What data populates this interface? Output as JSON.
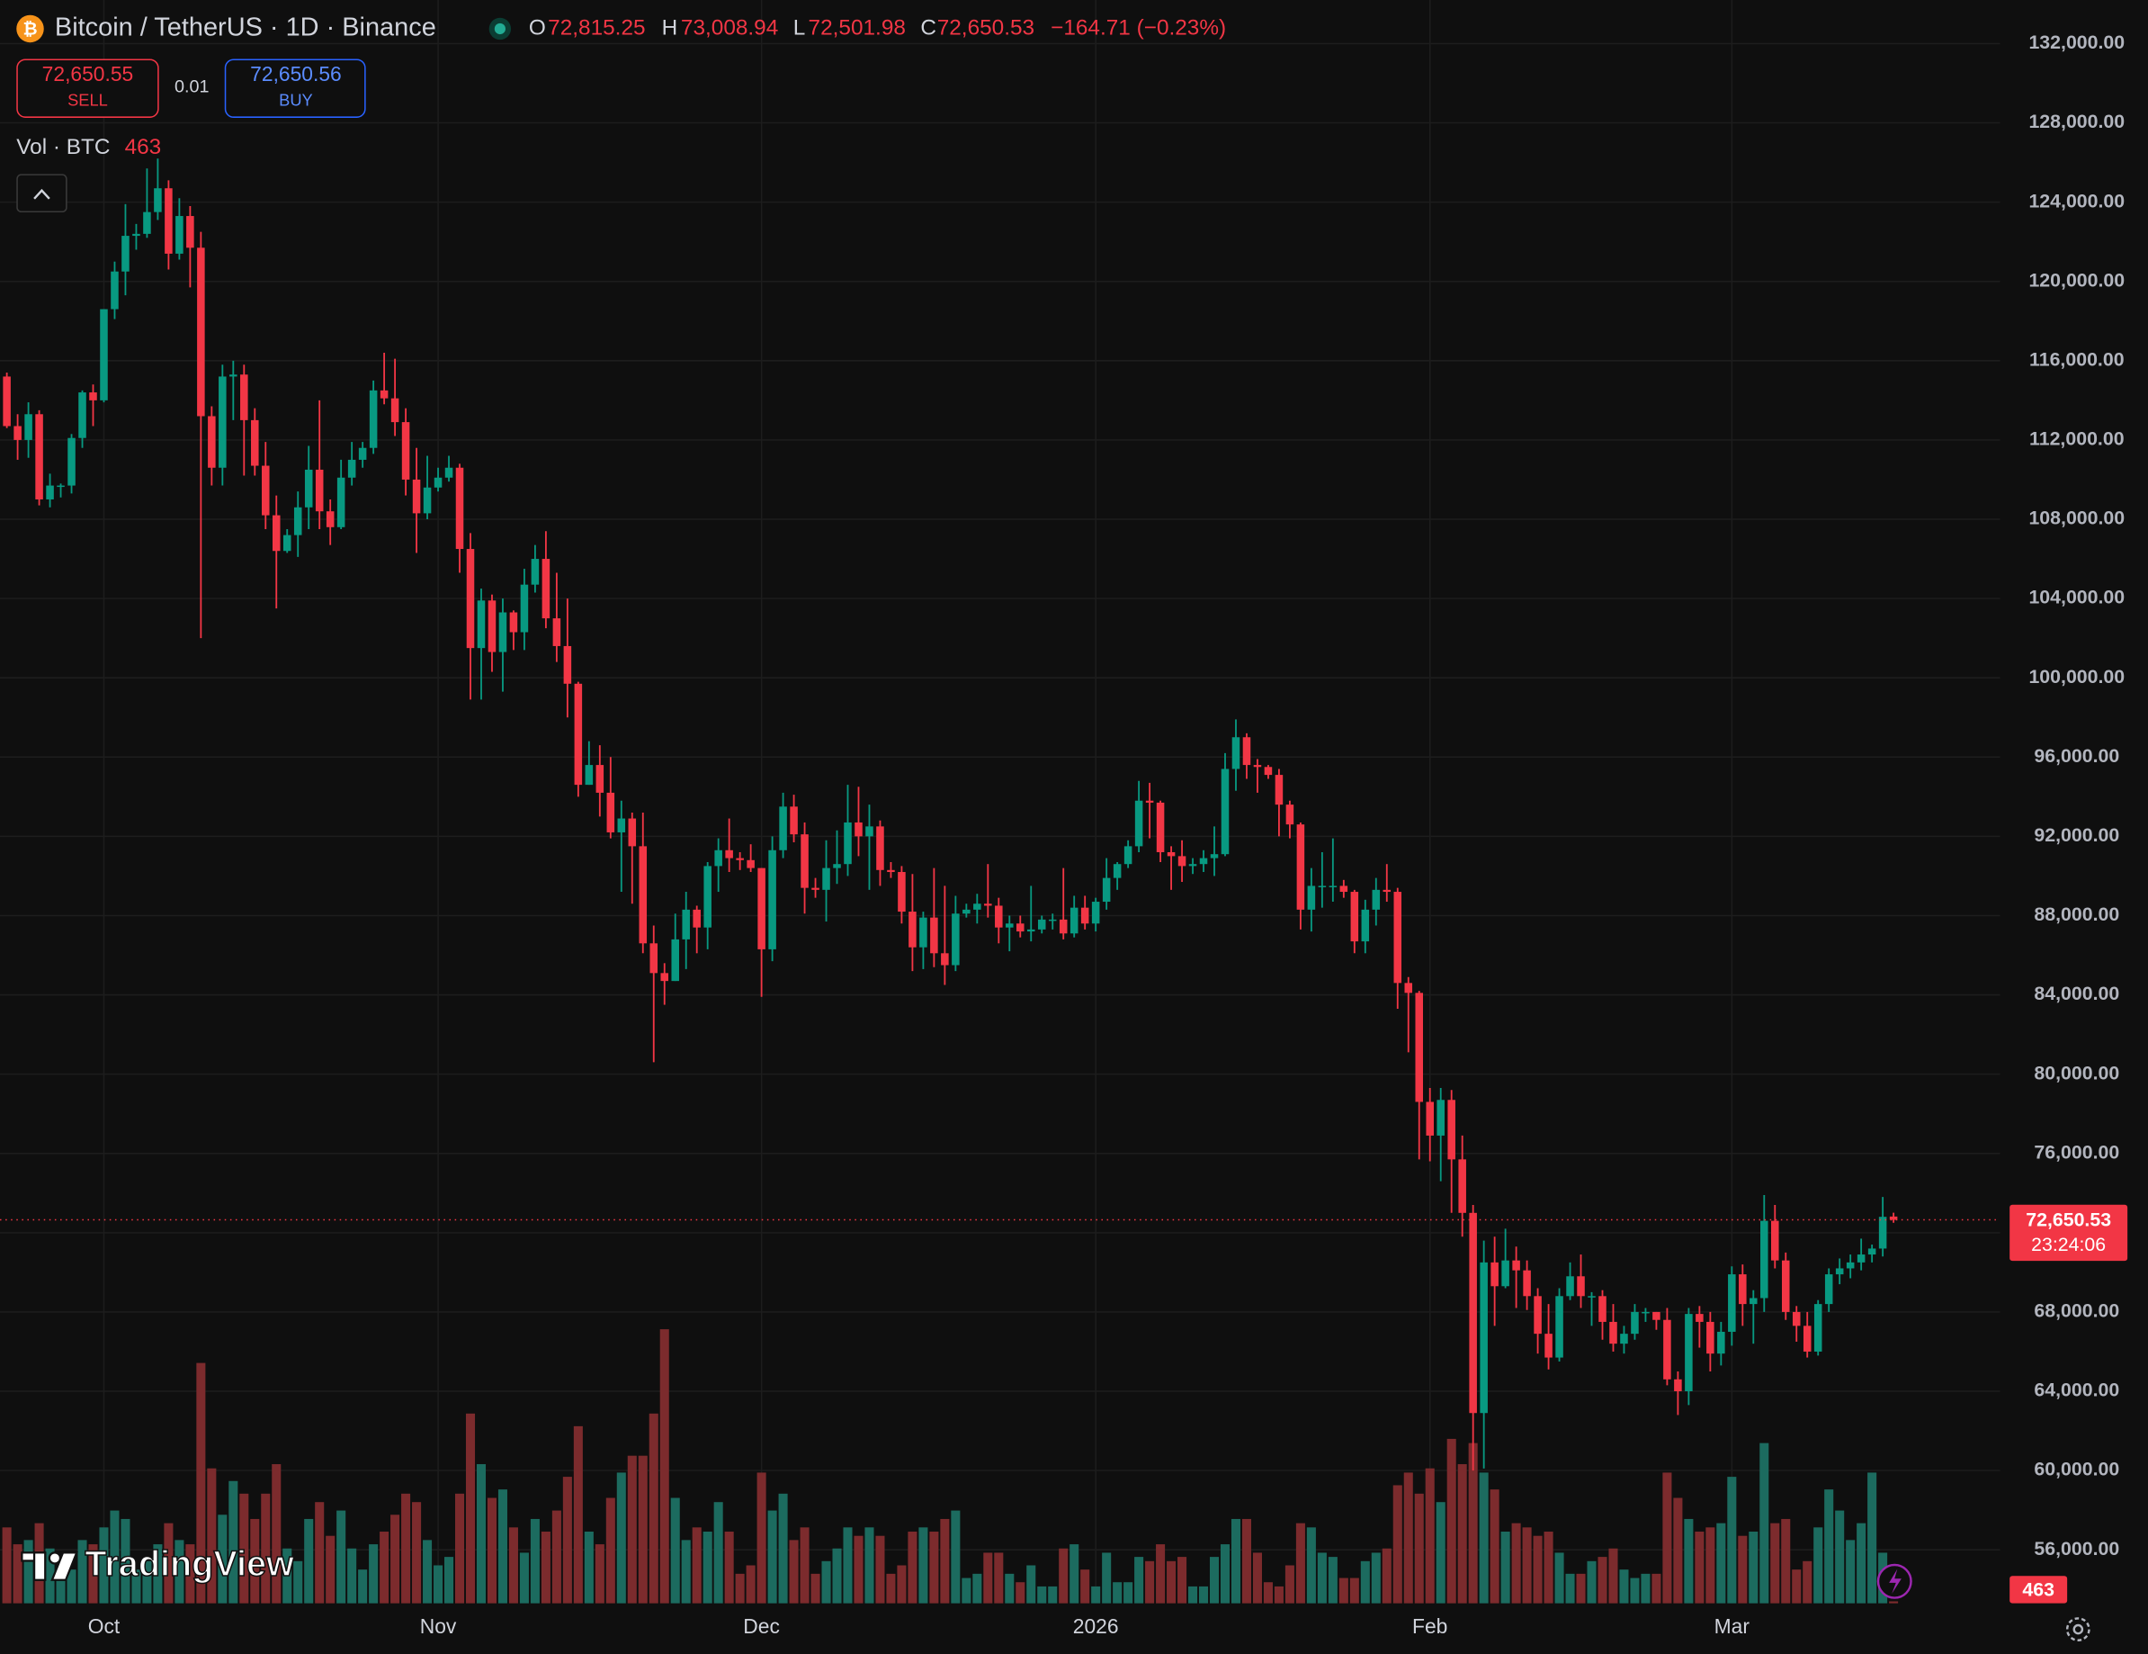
{
  "header": {
    "icon": "₿",
    "symbol": "Bitcoin / TetherUS · 1D · Binance",
    "ohlc": [
      {
        "key": "O",
        "value": "72,815.25"
      },
      {
        "key": "H",
        "value": "73,008.94"
      },
      {
        "key": "L",
        "value": "72,501.98"
      },
      {
        "key": "C",
        "value": "72,650.53"
      }
    ],
    "change": "−164.71 (−0.23%)"
  },
  "trade": {
    "sell_price": "72,650.55",
    "sell": "SELL",
    "quantity": "0.01",
    "buy_price": "72,650.56",
    "buy": "BUY"
  },
  "volume_legend": "Vol · BTC",
  "brand": "TradingView",
  "chart_data": {
    "type": "candlestick",
    "categories": [
      null,
      null,
      null,
      null,
      null,
      null,
      null,
      null,
      null,
      "Oct",
      null,
      null,
      null,
      null,
      null,
      null,
      null,
      null,
      null,
      null,
      null,
      null,
      null,
      null,
      null,
      null,
      null,
      null,
      null,
      null,
      null,
      null,
      null,
      null,
      null,
      null,
      null,
      null,
      null,
      null,
      "Nov",
      null,
      null,
      null,
      null,
      null,
      null,
      null,
      null,
      null,
      null,
      null,
      null,
      null,
      null,
      null,
      null,
      null,
      null,
      null,
      null,
      null,
      null,
      null,
      null,
      null,
      null,
      null,
      null,
      null,
      "Dec",
      null,
      null,
      null,
      null,
      null,
      null,
      null,
      null,
      null,
      null,
      null,
      null,
      null,
      null,
      null,
      null,
      null,
      null,
      null,
      null,
      null,
      null,
      null,
      null,
      null,
      null,
      null,
      null,
      null,
      null,
      "2026",
      null,
      null,
      null,
      null,
      null,
      null,
      null,
      null,
      null,
      null,
      null,
      null,
      null,
      null,
      null,
      null,
      null,
      null,
      null,
      null,
      null,
      null,
      null,
      null,
      null,
      null,
      null,
      null,
      null,
      null,
      "Feb",
      null,
      null,
      null,
      null,
      null,
      null,
      null,
      null,
      null,
      null,
      null,
      null,
      null,
      null,
      null,
      null,
      null,
      null,
      null,
      null,
      null,
      null,
      null,
      null,
      null,
      null,
      null,
      "Mar",
      null,
      null,
      null,
      null,
      null,
      null,
      null,
      null,
      null,
      null,
      null,
      null,
      null,
      null,
      null
    ],
    "open": [
      115200,
      112700,
      112000,
      113300,
      109000,
      109700,
      109700,
      112100,
      114400,
      114000,
      118600,
      120500,
      122300,
      122400,
      123500,
      124700,
      121400,
      123300,
      121700,
      113200,
      110600,
      115200,
      115300,
      113000,
      110700,
      108200,
      106400,
      107200,
      108600,
      110500,
      108400,
      107600,
      110100,
      111000,
      111600,
      114500,
      114100,
      112900,
      110000,
      108300,
      109600,
      110100,
      110600,
      106500,
      101500,
      103900,
      101300,
      103300,
      102300,
      104700,
      106000,
      103000,
      101600,
      99700,
      94600,
      95600,
      94200,
      92200,
      92900,
      91500,
      86600,
      85100,
      84700,
      86800,
      88300,
      87400,
      90500,
      91300,
      90900,
      90800,
      90400,
      86300,
      91300,
      93500,
      92100,
      89400,
      89300,
      90400,
      90600,
      92700,
      92000,
      92500,
      90300,
      90200,
      88200,
      86400,
      87900,
      86100,
      85500,
      88100,
      88300,
      88600,
      88500,
      87400,
      87600,
      87200,
      87300,
      87800,
      87800,
      87100,
      88400,
      87600,
      88700,
      89900,
      90600,
      91500,
      93800,
      93700,
      91200,
      91000,
      90500,
      90600,
      90900,
      91100,
      95400,
      97000,
      95600,
      95500,
      95100,
      93600,
      92600,
      88300,
      89500,
      89500,
      89500,
      89200,
      86700,
      88300,
      89300,
      89200,
      84600,
      84100,
      78600,
      76900,
      78700,
      75700,
      73000,
      62900,
      70500,
      69300,
      70600,
      70100,
      68800,
      66900,
      65700,
      68800,
      69800,
      68800,
      68800,
      67500,
      66400,
      66900,
      68000,
      68000,
      67600,
      64600,
      64000,
      67900,
      67500,
      65900,
      67000,
      69900,
      68400,
      68700,
      72600,
      70600,
      68000,
      67300,
      66000,
      68400,
      69900,
      70200,
      70500,
      70900,
      71200,
      72815.25
    ],
    "high": [
      115400,
      113300,
      113900,
      113500,
      110300,
      109800,
      112300,
      114500,
      114800,
      118600,
      121000,
      123900,
      122900,
      125700,
      126200,
      125100,
      124200,
      123800,
      122500,
      113700,
      115800,
      116000,
      115800,
      113600,
      111900,
      109200,
      107500,
      109400,
      111700,
      114000,
      109000,
      111000,
      111900,
      111900,
      115000,
      116400,
      116100,
      113600,
      111600,
      111200,
      110600,
      111200,
      110800,
      107300,
      104500,
      104200,
      104000,
      103400,
      105500,
      106700,
      107400,
      105300,
      104000,
      99800,
      96800,
      96600,
      96000,
      93800,
      93200,
      93200,
      87500,
      85600,
      88100,
      89200,
      88500,
      90700,
      91900,
      92900,
      91200,
      91600,
      90400,
      92000,
      94200,
      94100,
      92700,
      89900,
      91800,
      92300,
      94600,
      94500,
      93600,
      92800,
      90700,
      90500,
      90100,
      88200,
      90400,
      89500,
      89000,
      88600,
      89100,
      90600,
      88900,
      88000,
      88000,
      89500,
      88000,
      88100,
      90400,
      89000,
      89000,
      88900,
      90900,
      90700,
      91800,
      94800,
      94700,
      93800,
      91500,
      91800,
      90900,
      91300,
      92500,
      96200,
      97900,
      97200,
      95900,
      95600,
      95400,
      93800,
      92700,
      90400,
      91200,
      91900,
      89800,
      89300,
      88800,
      89900,
      90600,
      89400,
      84900,
      84200,
      79300,
      79300,
      79200,
      76900,
      73400,
      71600,
      71800,
      72200,
      71300,
      70600,
      69200,
      68400,
      69200,
      70500,
      70900,
      69000,
      69100,
      68400,
      67300,
      68400,
      68200,
      68000,
      68200,
      65000,
      68200,
      68300,
      68000,
      67500,
      70300,
      70400,
      69100,
      73900,
      73400,
      71000,
      68300,
      68000,
      68600,
      70200,
      70700,
      70900,
      71700,
      71400,
      73800,
      73008.94
    ],
    "low": [
      112600,
      111000,
      111100,
      108700,
      108600,
      109100,
      109300,
      111600,
      112700,
      113900,
      118100,
      119300,
      121600,
      122200,
      123100,
      120600,
      121100,
      119700,
      102000,
      109700,
      109700,
      113000,
      110200,
      110200,
      107500,
      103500,
      106300,
      106100,
      107500,
      107500,
      106700,
      107500,
      109700,
      110600,
      111300,
      113800,
      112200,
      109200,
      106300,
      108000,
      109400,
      109900,
      105300,
      98900,
      98900,
      100300,
      99300,
      101400,
      101400,
      104300,
      102500,
      100800,
      98000,
      94000,
      94600,
      93000,
      91900,
      89200,
      88600,
      86100,
      80600,
      83500,
      84700,
      85300,
      86100,
      86300,
      89200,
      90200,
      90300,
      90200,
      83900,
      85700,
      90900,
      91700,
      88100,
      88900,
      87700,
      89600,
      90000,
      91000,
      89300,
      89500,
      89900,
      87600,
      85200,
      85300,
      85400,
      84500,
      85200,
      87900,
      87600,
      87900,
      86600,
      86200,
      86900,
      86700,
      87100,
      87300,
      86800,
      86900,
      87300,
      87200,
      88300,
      89300,
      90400,
      91200,
      91900,
      90700,
      89300,
      89700,
      90100,
      90200,
      90000,
      91000,
      94300,
      94900,
      94200,
      94900,
      92000,
      91900,
      87300,
      87200,
      88400,
      88700,
      88900,
      86100,
      86100,
      87500,
      88700,
      83300,
      81100,
      75700,
      75600,
      74600,
      73000,
      71800,
      60000,
      60100,
      67300,
      69200,
      68200,
      68100,
      65900,
      65100,
      65500,
      68600,
      68200,
      67300,
      66600,
      66000,
      65900,
      66600,
      67500,
      67100,
      64300,
      62800,
      63300,
      66200,
      65000,
      65300,
      66300,
      67300,
      66400,
      68000,
      70200,
      67600,
      66500,
      65700,
      65800,
      68000,
      69400,
      69700,
      70100,
      70500,
      70800,
      72501.98
    ],
    "close": [
      112700,
      112000,
      113300,
      109000,
      109700,
      109700,
      112100,
      114400,
      114000,
      118600,
      120500,
      122300,
      122400,
      123500,
      124700,
      121400,
      123300,
      121700,
      113200,
      110600,
      115200,
      115300,
      113000,
      110700,
      108200,
      106400,
      107200,
      108600,
      110500,
      108400,
      107600,
      110100,
      111000,
      111600,
      114500,
      114100,
      112900,
      110000,
      108300,
      109600,
      110100,
      110600,
      106500,
      101500,
      103900,
      101300,
      103300,
      102300,
      104700,
      106000,
      103000,
      101600,
      99700,
      94600,
      95600,
      94200,
      92200,
      92900,
      91500,
      86600,
      85100,
      84700,
      86800,
      88300,
      87400,
      90500,
      91300,
      90900,
      90800,
      90400,
      86300,
      91300,
      93500,
      92100,
      89400,
      89300,
      90400,
      90600,
      92700,
      92000,
      92500,
      90300,
      90200,
      88200,
      86400,
      87900,
      86100,
      85500,
      88100,
      88300,
      88600,
      88500,
      87400,
      87600,
      87200,
      87300,
      87800,
      87800,
      87100,
      88400,
      87600,
      88700,
      89900,
      90600,
      91500,
      93800,
      93700,
      91200,
      91000,
      90500,
      90600,
      90900,
      91100,
      95400,
      97000,
      95600,
      95500,
      95100,
      93600,
      92600,
      88300,
      89500,
      89500,
      89500,
      89200,
      86700,
      88300,
      89300,
      89200,
      84600,
      84100,
      78600,
      76900,
      78700,
      75700,
      73000,
      62900,
      70500,
      69300,
      70600,
      70100,
      68800,
      66900,
      65700,
      68800,
      69800,
      68800,
      68800,
      67500,
      66400,
      66900,
      68000,
      68000,
      67600,
      64600,
      64000,
      67900,
      67500,
      65900,
      67000,
      69900,
      68400,
      68700,
      72600,
      70600,
      68000,
      67300,
      66000,
      68400,
      69900,
      70200,
      70500,
      70900,
      71200,
      72800,
      72650.53
    ],
    "volume": [
      18000,
      14000,
      15000,
      19000,
      13000,
      6000,
      8000,
      15000,
      14000,
      18000,
      22000,
      20000,
      8000,
      10000,
      14000,
      19000,
      15000,
      14000,
      57000,
      32000,
      21000,
      29000,
      26000,
      20000,
      26000,
      33000,
      13000,
      10000,
      20000,
      24000,
      16000,
      22000,
      13000,
      8000,
      14000,
      17000,
      21000,
      26000,
      24000,
      15000,
      9000,
      11000,
      26000,
      45000,
      33000,
      25000,
      27000,
      18000,
      12000,
      20000,
      17000,
      22000,
      30000,
      42000,
      17000,
      14000,
      25000,
      31000,
      35000,
      35000,
      45000,
      65000,
      25000,
      15000,
      18000,
      17000,
      24000,
      17000,
      7000,
      9000,
      31000,
      22000,
      26000,
      15000,
      18000,
      7000,
      10000,
      13000,
      18000,
      16000,
      18000,
      16000,
      7000,
      9000,
      17000,
      18000,
      17000,
      20000,
      22000,
      6000,
      7000,
      12000,
      12000,
      7000,
      5000,
      9000,
      4000,
      4000,
      13000,
      14000,
      8000,
      4000,
      12000,
      5000,
      5000,
      11000,
      10000,
      14000,
      10000,
      11000,
      4000,
      4000,
      11000,
      14000,
      20000,
      20000,
      12000,
      5000,
      4000,
      9000,
      19000,
      18000,
      12000,
      11000,
      6000,
      6000,
      10000,
      12000,
      13000,
      28000,
      31000,
      26000,
      32000,
      24000,
      39000,
      33000,
      38000,
      31000,
      27000,
      17000,
      19000,
      18000,
      16000,
      17000,
      12000,
      7000,
      7000,
      10000,
      11000,
      13000,
      8000,
      6000,
      7000,
      7000,
      31000,
      25000,
      20000,
      17000,
      18000,
      19000,
      30000,
      16000,
      17000,
      38000,
      19000,
      20000,
      8000,
      10000,
      18000,
      27000,
      22000,
      15000,
      19000,
      31000,
      12000,
      463
    ],
    "up_color": "#089981",
    "down_color": "#f23645",
    "volume_up_color": "#1c6b5f",
    "volume_down_color": "#7c2b2d",
    "ylim": [
      53300,
      134200
    ],
    "yticks": [
      {
        "value": 56000,
        "label": "56,000.00"
      },
      {
        "value": 60000,
        "label": "60,000.00"
      },
      {
        "value": 64000,
        "label": "64,000.00"
      },
      {
        "value": 68000,
        "label": "68,000.00"
      },
      {
        "value": 72000,
        "label": "72,000.00"
      },
      {
        "value": 76000,
        "label": "76,000.00"
      },
      {
        "value": 80000,
        "label": "80,000.00"
      },
      {
        "value": 84000,
        "label": "84,000.00"
      },
      {
        "value": 88000,
        "label": "88,000.00"
      },
      {
        "value": 92000,
        "label": "92,000.00"
      },
      {
        "value": 96000,
        "label": "96,000.00"
      },
      {
        "value": 100000,
        "label": "100,000.00"
      },
      {
        "value": 104000,
        "label": "104,000.00"
      },
      {
        "value": 108000,
        "label": "108,000.00"
      },
      {
        "value": 112000,
        "label": "112,000.00"
      },
      {
        "value": 116000,
        "label": "116,000.00"
      },
      {
        "value": 120000,
        "label": "120,000.00"
      },
      {
        "value": 124000,
        "label": "124,000.00"
      },
      {
        "value": 128000,
        "label": "128,000.00"
      },
      {
        "value": 132000,
        "label": "132,000.00"
      }
    ],
    "grid": true,
    "last_price_label": "72,650.53",
    "countdown": "23:24:06"
  }
}
